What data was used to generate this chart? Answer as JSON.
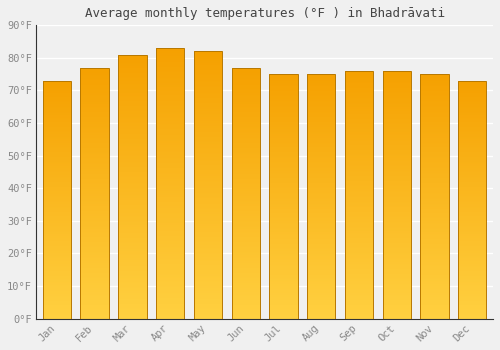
{
  "months": [
    "Jan",
    "Feb",
    "Mar",
    "Apr",
    "May",
    "Jun",
    "Jul",
    "Aug",
    "Sep",
    "Oct",
    "Nov",
    "Dec"
  ],
  "values": [
    73,
    77,
    81,
    83,
    82,
    77,
    75,
    75,
    76,
    76,
    75,
    73
  ],
  "bar_color_bottom": "#FFD040",
  "bar_color_top": "#F5A000",
  "bar_edge_color": "#B87800",
  "title": "Average monthly temperatures (°F ) in Bhadrāvati",
  "ylim": [
    0,
    90
  ],
  "yticks": [
    0,
    10,
    20,
    30,
    40,
    50,
    60,
    70,
    80,
    90
  ],
  "ytick_labels": [
    "0°F",
    "10°F",
    "20°F",
    "30°F",
    "40°F",
    "50°F",
    "60°F",
    "70°F",
    "80°F",
    "90°F"
  ],
  "background_color": "#f0f0f0",
  "grid_color": "#ffffff",
  "title_fontsize": 9,
  "tick_fontsize": 7.5,
  "tick_color": "#888888",
  "bar_width": 0.75,
  "n_grad": 200
}
